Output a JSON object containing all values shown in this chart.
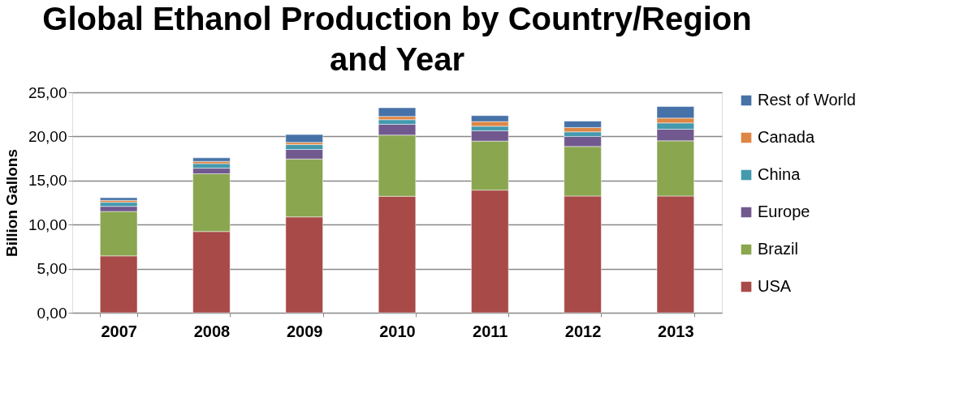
{
  "chart_data": {
    "type": "bar",
    "stacked": true,
    "title": "Global Ethanol Production by Country/Region and Year",
    "ylabel": "Billion Gallons",
    "categories": [
      "2007",
      "2008",
      "2009",
      "2010",
      "2011",
      "2012",
      "2013"
    ],
    "series": [
      {
        "name": "USA",
        "color": "#a84a48",
        "values": [
          6.45,
          9.21,
          10.87,
          13.21,
          13.91,
          13.24,
          13.24
        ]
      },
      {
        "name": "Brazil",
        "color": "#8aa64f",
        "values": [
          5.04,
          6.55,
          6.57,
          6.94,
          5.56,
          5.62,
          6.26
        ]
      },
      {
        "name": "Europe",
        "color": "#71598f",
        "values": [
          0.58,
          0.64,
          1.08,
          1.23,
          1.17,
          1.14,
          1.32
        ]
      },
      {
        "name": "China",
        "color": "#4399ae",
        "values": [
          0.46,
          0.52,
          0.55,
          0.52,
          0.52,
          0.52,
          0.71
        ]
      },
      {
        "name": "Canada",
        "color": "#de8644",
        "values": [
          0.22,
          0.25,
          0.25,
          0.37,
          0.52,
          0.49,
          0.55
        ]
      },
      {
        "name": "Rest of World",
        "color": "#4672a8",
        "values": [
          0.3,
          0.4,
          0.89,
          0.98,
          0.68,
          0.73,
          1.32
        ]
      }
    ],
    "ylim": [
      0,
      25
    ],
    "yticks": [
      {
        "value": 0,
        "label": "0,00"
      },
      {
        "value": 5,
        "label": "5,00"
      },
      {
        "value": 10,
        "label": "10,00"
      },
      {
        "value": 15,
        "label": "15,00"
      },
      {
        "value": 20,
        "label": "20,00"
      },
      {
        "value": 25,
        "label": "25,00"
      }
    ],
    "grid": "y",
    "legend": "right"
  }
}
